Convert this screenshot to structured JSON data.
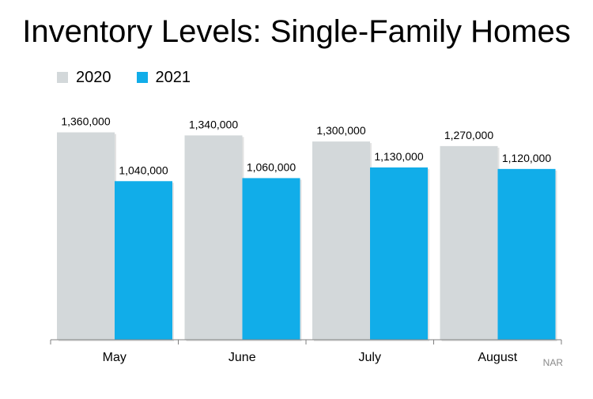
{
  "chart_data": {
    "type": "bar",
    "title": "Inventory Levels: Single-Family Homes",
    "categories": [
      "May",
      "June",
      "July",
      "August"
    ],
    "series": [
      {
        "name": "2020",
        "color": "#d3d8da",
        "values": [
          1360000,
          1340000,
          1300000,
          1270000
        ],
        "labels": [
          "1,360,000",
          "1,340,000",
          "1,300,000",
          "1,270,000"
        ]
      },
      {
        "name": "2021",
        "color": "#11ade9",
        "values": [
          1040000,
          1060000,
          1130000,
          1120000
        ],
        "labels": [
          "1,040,000",
          "1,060,000",
          "1,130,000",
          "1,120,000"
        ]
      }
    ],
    "ylim": [
      0,
      1400000
    ],
    "grid": false,
    "legend": "top-left",
    "source": "NAR"
  }
}
